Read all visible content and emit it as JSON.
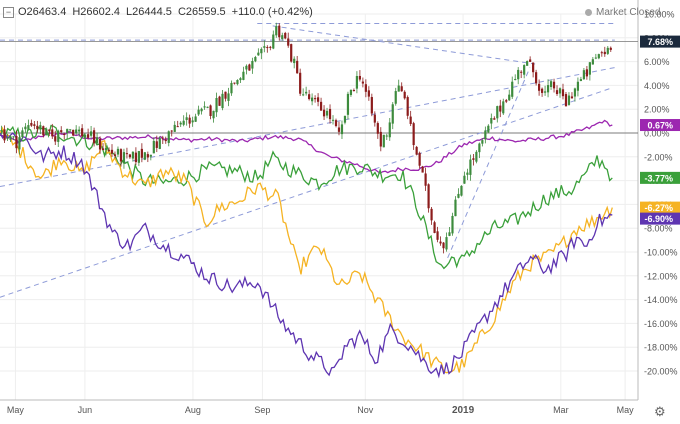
{
  "header": {
    "open": "O26463.4",
    "high": "H26602.4",
    "low": "L26444.5",
    "close": "C26559.5",
    "change": "+110.0 (+0.42%)",
    "status": "Market Closed"
  },
  "chart_data": {
    "type": "line",
    "title": "",
    "xlabel": "",
    "ylabel": "",
    "y_unit": "percent",
    "ylim": [
      -21,
      10.5
    ],
    "yticks": [
      10,
      8,
      6,
      4,
      2,
      0,
      -2,
      -4,
      -6,
      -8,
      -10,
      -12,
      -14,
      -16,
      -18,
      -20
    ],
    "ytick_labels": [
      "10.00%",
      "8.00%",
      "6.00%",
      "4.00%",
      "2.00%",
      "0.00%",
      "-2.00%",
      "-4.00%",
      "-6.00%",
      "-8.00%",
      "-10.00%",
      "-12.00%",
      "-14.00%",
      "-16.00%",
      "-18.00%",
      "-20.00%"
    ],
    "xlim": [
      0,
      12.4
    ],
    "xticks": [
      0.3,
      1.65,
      3.75,
      5.1,
      7.1,
      9.0,
      10.9,
      12.15
    ],
    "xtick_labels": [
      "May",
      "Jun",
      "Aug",
      "Sep",
      "Nov",
      "2019",
      "Mar",
      "May"
    ],
    "grid": true,
    "main_series": {
      "style": "candlestick",
      "colors": {
        "up": "#3d8b3d",
        "down": "#8c1c1c"
      },
      "last_value_label": "7.68%",
      "anchors": [
        [
          0,
          0.2
        ],
        [
          0.3,
          -0.8
        ],
        [
          0.6,
          1.0
        ],
        [
          1.0,
          -0.5
        ],
        [
          1.3,
          0.5
        ],
        [
          1.7,
          -0.2
        ],
        [
          2.1,
          -1.5
        ],
        [
          2.5,
          -2.3
        ],
        [
          2.9,
          -1.5
        ],
        [
          3.3,
          0
        ],
        [
          3.6,
          1.0
        ],
        [
          4.1,
          2.0
        ],
        [
          4.5,
          4.0
        ],
        [
          4.85,
          5.5
        ],
        [
          5.2,
          7.0
        ],
        [
          5.35,
          8.8
        ],
        [
          5.5,
          8.3
        ],
        [
          5.7,
          6.0
        ],
        [
          5.85,
          3.5
        ],
        [
          6.1,
          2.5
        ],
        [
          6.4,
          1.5
        ],
        [
          6.6,
          -0.5
        ],
        [
          6.8,
          3.5
        ],
        [
          7.0,
          5.0
        ],
        [
          7.2,
          2.0
        ],
        [
          7.4,
          -1.0
        ],
        [
          7.55,
          0.5
        ],
        [
          7.7,
          4.0
        ],
        [
          7.9,
          2.5
        ],
        [
          8.0,
          -0.3
        ],
        [
          8.15,
          -2.5
        ],
        [
          8.4,
          -7.5
        ],
        [
          8.6,
          -9.5
        ],
        [
          8.8,
          -7.0
        ],
        [
          9.0,
          -3.5
        ],
        [
          9.3,
          -1.5
        ],
        [
          9.5,
          0.5
        ],
        [
          9.7,
          2.0
        ],
        [
          10.0,
          4.5
        ],
        [
          10.2,
          6.0
        ],
        [
          10.4,
          5.0
        ],
        [
          10.55,
          3.0
        ],
        [
          10.75,
          4.0
        ],
        [
          11.0,
          2.5
        ],
        [
          11.2,
          4.0
        ],
        [
          11.4,
          5.0
        ],
        [
          11.6,
          6.5
        ],
        [
          11.8,
          7.0
        ],
        [
          11.9,
          7.68
        ]
      ]
    },
    "series": [
      {
        "label": "0.67%",
        "color": "#9c27b0",
        "anchors": [
          [
            0,
            -0.2
          ],
          [
            0.4,
            -0.8
          ],
          [
            0.8,
            -0.2
          ],
          [
            1.3,
            0.0
          ],
          [
            1.8,
            -0.5
          ],
          [
            2.4,
            -0.4
          ],
          [
            3.0,
            -0.3
          ],
          [
            3.6,
            -0.6
          ],
          [
            4.1,
            -0.5
          ],
          [
            4.7,
            -0.7
          ],
          [
            5.3,
            -0.3
          ],
          [
            5.8,
            -0.5
          ],
          [
            6.4,
            -2.0
          ],
          [
            6.9,
            -2.6
          ],
          [
            7.4,
            -3.4
          ],
          [
            7.8,
            -3.0
          ],
          [
            8.2,
            -3.0
          ],
          [
            8.5,
            -2.5
          ],
          [
            9.0,
            -1.0
          ],
          [
            9.5,
            -0.4
          ],
          [
            10.0,
            -0.7
          ],
          [
            10.5,
            -0.5
          ],
          [
            11.0,
            -0.2
          ],
          [
            11.5,
            0.5
          ],
          [
            11.7,
            1.0
          ],
          [
            11.9,
            0.67
          ]
        ]
      },
      {
        "label": "-3.77%",
        "color": "#3aa03a",
        "anchors": [
          [
            0,
            0
          ],
          [
            0.5,
            -0.2
          ],
          [
            1.0,
            0.2
          ],
          [
            1.5,
            -0.5
          ],
          [
            1.9,
            -1.0
          ],
          [
            2.4,
            -2.5
          ],
          [
            2.8,
            -4.0
          ],
          [
            3.2,
            -4.2
          ],
          [
            3.6,
            -3.8
          ],
          [
            4.1,
            -3.0
          ],
          [
            4.6,
            -3.2
          ],
          [
            5.0,
            -3.8
          ],
          [
            5.3,
            -2.2
          ],
          [
            5.7,
            -3.2
          ],
          [
            6.2,
            -4.2
          ],
          [
            6.6,
            -3.0
          ],
          [
            7.0,
            -2.8
          ],
          [
            7.4,
            -3.5
          ],
          [
            7.8,
            -3.4
          ],
          [
            8.1,
            -6.0
          ],
          [
            8.4,
            -9.5
          ],
          [
            8.6,
            -11.5
          ],
          [
            8.8,
            -10.5
          ],
          [
            9.0,
            -10.8
          ],
          [
            9.3,
            -9.2
          ],
          [
            9.6,
            -8.0
          ],
          [
            10.0,
            -7.4
          ],
          [
            10.3,
            -6.5
          ],
          [
            10.6,
            -5.5
          ],
          [
            10.9,
            -5.0
          ],
          [
            11.1,
            -4.8
          ],
          [
            11.4,
            -3.5
          ],
          [
            11.6,
            -2.2
          ],
          [
            11.75,
            -2.6
          ],
          [
            11.9,
            -3.77
          ]
        ]
      },
      {
        "label": "-6.27%",
        "color": "#f5b323",
        "anchors": [
          [
            0,
            0
          ],
          [
            0.4,
            -1.5
          ],
          [
            0.8,
            -3.8
          ],
          [
            1.2,
            -2.0
          ],
          [
            1.6,
            -3.5
          ],
          [
            2.0,
            -1.0
          ],
          [
            2.4,
            -3.2
          ],
          [
            2.8,
            -4.5
          ],
          [
            3.2,
            -3.2
          ],
          [
            3.6,
            -4.0
          ],
          [
            4.0,
            -7.5
          ],
          [
            4.3,
            -6.2
          ],
          [
            4.6,
            -5.8
          ],
          [
            5.0,
            -4.5
          ],
          [
            5.4,
            -5.5
          ],
          [
            5.8,
            -11.5
          ],
          [
            6.2,
            -9.5
          ],
          [
            6.6,
            -13.0
          ],
          [
            7.0,
            -11.8
          ],
          [
            7.4,
            -14.5
          ],
          [
            7.8,
            -17.0
          ],
          [
            8.1,
            -18.0
          ],
          [
            8.4,
            -19.2
          ],
          [
            8.7,
            -20.0
          ],
          [
            9.0,
            -19.5
          ],
          [
            9.3,
            -17.5
          ],
          [
            9.6,
            -15.5
          ],
          [
            10.0,
            -12.5
          ],
          [
            10.3,
            -11.0
          ],
          [
            10.6,
            -10.5
          ],
          [
            10.9,
            -9.5
          ],
          [
            11.2,
            -8.0
          ],
          [
            11.5,
            -7.5
          ],
          [
            11.7,
            -6.8
          ],
          [
            11.9,
            -6.27
          ]
        ]
      },
      {
        "label": "-6.90%",
        "color": "#5e35b1",
        "anchors": [
          [
            0,
            0
          ],
          [
            0.5,
            -0.5
          ],
          [
            0.8,
            -2.0
          ],
          [
            1.2,
            -1.5
          ],
          [
            1.6,
            -2.5
          ],
          [
            1.9,
            -5.5
          ],
          [
            2.2,
            -8.5
          ],
          [
            2.5,
            -9.5
          ],
          [
            2.8,
            -8.0
          ],
          [
            3.2,
            -9.5
          ],
          [
            3.6,
            -10.5
          ],
          [
            4.0,
            -12.0
          ],
          [
            4.5,
            -13.0
          ],
          [
            5.0,
            -12.5
          ],
          [
            5.5,
            -16.0
          ],
          [
            6.0,
            -18.5
          ],
          [
            6.3,
            -19.5
          ],
          [
            6.5,
            -20.3
          ],
          [
            6.7,
            -18.0
          ],
          [
            7.0,
            -17.0
          ],
          [
            7.3,
            -19.0
          ],
          [
            7.6,
            -16.5
          ],
          [
            8.0,
            -18.0
          ],
          [
            8.3,
            -19.5
          ],
          [
            8.6,
            -20.0
          ],
          [
            8.9,
            -19.0
          ],
          [
            9.2,
            -17.0
          ],
          [
            9.6,
            -14.5
          ],
          [
            10.0,
            -12.0
          ],
          [
            10.3,
            -10.5
          ],
          [
            10.6,
            -11.5
          ],
          [
            11.0,
            -10.2
          ],
          [
            11.2,
            -8.8
          ],
          [
            11.4,
            -9.5
          ],
          [
            11.6,
            -7.5
          ],
          [
            11.8,
            -7.2
          ],
          [
            11.9,
            -6.9
          ]
        ]
      }
    ],
    "value_badges": [
      {
        "label": "7.68%",
        "value": 7.68,
        "color": "#1b2a3d"
      },
      {
        "label": "0.67%",
        "value": 0.67,
        "color": "#9c27b0"
      },
      {
        "label": "-3.77%",
        "value": -3.77,
        "color": "#3aa03a"
      },
      {
        "label": "-6.27%",
        "value": -6.27,
        "color": "#f5b323"
      },
      {
        "label": "-6.90%",
        "value": -6.9,
        "color": "#5e35b1"
      }
    ],
    "trend_lines": [
      {
        "style": "dashed",
        "color": "#8e9bd8",
        "points": [
          [
            0,
            -4.5
          ],
          [
            11.95,
            5.5
          ]
        ]
      },
      {
        "style": "dashed",
        "color": "#8e9bd8",
        "points": [
          [
            0,
            -13.8
          ],
          [
            11.9,
            3.8
          ]
        ]
      },
      {
        "style": "dashed",
        "color": "#8e9bd8",
        "points": [
          [
            5.0,
            9.2
          ],
          [
            11.95,
            9.2
          ]
        ]
      },
      {
        "style": "dashed",
        "color": "#8e9bd8",
        "points": [
          [
            0,
            7.8
          ],
          [
            11.95,
            7.8
          ]
        ]
      },
      {
        "style": "dashed",
        "color": "#8e9bd8",
        "points": [
          [
            5.3,
            9.0
          ],
          [
            10.4,
            5.8
          ]
        ]
      },
      {
        "style": "dashed",
        "color": "#8e9bd8",
        "points": [
          [
            8.7,
            -10.5
          ],
          [
            10.3,
            5.5
          ]
        ]
      }
    ],
    "reference_lines": [
      {
        "value": 7.68,
        "color": "#777777"
      },
      {
        "value": 0,
        "color": "#555555"
      }
    ]
  }
}
